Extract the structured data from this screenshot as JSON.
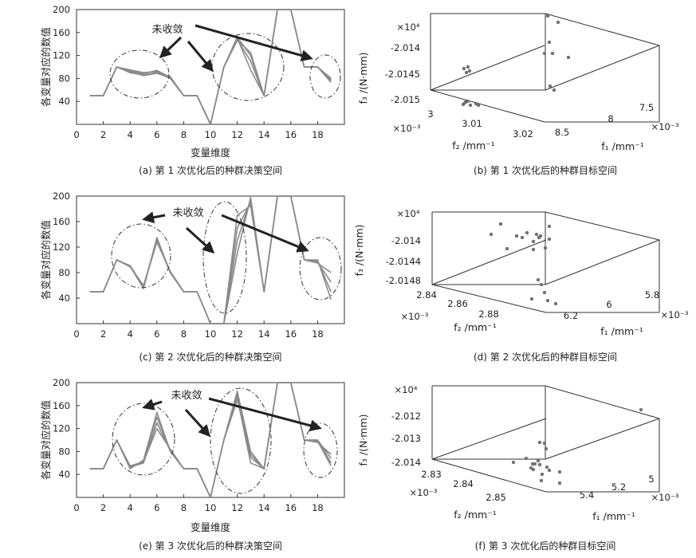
{
  "chart_data": [
    {
      "id": "a",
      "type": "line",
      "caption": "(a) 第 1 次优化后的种群决策空间",
      "ylabel": "各变量对应的数值",
      "xlabel": "变量维度",
      "xlim": [
        0,
        20
      ],
      "ylim": [
        0,
        200
      ],
      "xticks": [
        0,
        2,
        4,
        6,
        8,
        10,
        12,
        14,
        16,
        18
      ],
      "yticks": [
        40,
        80,
        120,
        160,
        200
      ],
      "annotation": "未收敛",
      "x": [
        1,
        2,
        3,
        4,
        5,
        6,
        7,
        8,
        9,
        10,
        11,
        12,
        13,
        14,
        15,
        16,
        17,
        18,
        19
      ],
      "series": [
        {
          "values": [
            50,
            50,
            100,
            90,
            86,
            90,
            80,
            50,
            50,
            0,
            100,
            150,
            95,
            50,
            200,
            200,
            100,
            100,
            80
          ]
        },
        {
          "values": [
            50,
            50,
            100,
            93,
            88,
            94,
            82,
            50,
            50,
            0,
            100,
            148,
            110,
            50,
            200,
            200,
            100,
            100,
            76
          ]
        },
        {
          "values": [
            50,
            50,
            100,
            95,
            90,
            92,
            83,
            50,
            50,
            0,
            100,
            152,
            120,
            50,
            200,
            200,
            100,
            100,
            73
          ]
        },
        {
          "values": [
            50,
            50,
            100,
            92,
            85,
            89,
            81,
            50,
            50,
            0,
            100,
            146,
            125,
            50,
            200,
            200,
            100,
            100,
            78
          ]
        }
      ]
    },
    {
      "id": "b",
      "type": "scatter",
      "caption": "(b) 第 1 次优化后的种群目标空间",
      "scale_note": "×10⁴",
      "zlabel": "f₃ /(N·mm)",
      "xlabel": "f₂ /mm⁻¹",
      "ylabel": "f₁ /mm⁻¹",
      "zticks": [
        "-2.014",
        "-2.0145",
        "-2.015"
      ],
      "f2_ticks": [
        "3",
        "3.01",
        "3.02"
      ],
      "f2_exp": "×10⁻³",
      "f1_ticks": [
        "8.5",
        "8",
        "7.5"
      ],
      "f1_exp": "×10⁻³"
    },
    {
      "id": "c",
      "type": "line",
      "caption": "(c) 第 2 次优化后的种群决策空间",
      "ylabel": "各变量对应的数值",
      "xlabel": "",
      "xlim": [
        0,
        20
      ],
      "ylim": [
        0,
        200
      ],
      "xticks": [
        0,
        2,
        4,
        6,
        8,
        10,
        12,
        14,
        16,
        18
      ],
      "yticks": [
        40,
        80,
        120,
        160,
        200
      ],
      "annotation": "未收敛",
      "x": [
        1,
        2,
        3,
        4,
        5,
        6,
        7,
        8,
        9,
        10,
        11,
        12,
        13,
        14,
        15,
        16,
        17,
        18,
        19
      ],
      "series": [
        {
          "values": [
            50,
            50,
            100,
            90,
            55,
            135,
            80,
            50,
            50,
            0,
            0,
            110,
            198,
            50,
            200,
            200,
            100,
            100,
            38
          ]
        },
        {
          "values": [
            50,
            50,
            100,
            91,
            58,
            132,
            81,
            50,
            50,
            0,
            0,
            130,
            195,
            50,
            200,
            200,
            100,
            98,
            50
          ]
        },
        {
          "values": [
            50,
            50,
            100,
            89,
            60,
            128,
            82,
            50,
            50,
            0,
            0,
            150,
            190,
            50,
            200,
            200,
            100,
            96,
            65
          ]
        },
        {
          "values": [
            50,
            50,
            100,
            90,
            57,
            130,
            80,
            50,
            50,
            0,
            0,
            170,
            185,
            50,
            200,
            200,
            100,
            95,
            80
          ]
        }
      ]
    },
    {
      "id": "d",
      "type": "scatter",
      "caption": "(d) 第 2 次优化后的种群目标空间",
      "scale_note": "×10⁴",
      "zlabel": "f₃ /(N·mm)",
      "xlabel": "f₂ /mm⁻¹",
      "ylabel": "f₁ /mm⁻¹",
      "zticks": [
        "-2.014",
        "-2.0144",
        "-2.0148"
      ],
      "f2_ticks": [
        "2.84",
        "2.86",
        "2.88"
      ],
      "f2_exp": "×10⁻³",
      "f1_ticks": [
        "6.2",
        "6",
        "5.8"
      ],
      "f1_exp": "×10⁻³"
    },
    {
      "id": "e",
      "type": "line",
      "caption": "(e) 第 3 次优化后的种群决策空间",
      "ylabel": "各变量对应的数值",
      "xlabel": "变量维度",
      "xlim": [
        0,
        20
      ],
      "ylim": [
        0,
        200
      ],
      "xticks": [
        0,
        2,
        4,
        6,
        8,
        10,
        12,
        14,
        16,
        18
      ],
      "yticks": [
        40,
        80,
        120,
        160,
        200
      ],
      "annotation": "未收敛",
      "x": [
        1,
        2,
        3,
        4,
        5,
        6,
        7,
        8,
        9,
        10,
        11,
        12,
        13,
        14,
        15,
        16,
        17,
        18,
        19
      ],
      "series": [
        {
          "values": [
            50,
            50,
            100,
            50,
            65,
            148,
            80,
            50,
            50,
            0,
            100,
            185,
            80,
            50,
            200,
            200,
            100,
            100,
            60
          ]
        },
        {
          "values": [
            50,
            50,
            100,
            52,
            63,
            140,
            82,
            50,
            50,
            0,
            100,
            180,
            70,
            50,
            200,
            200,
            100,
            100,
            68
          ]
        },
        {
          "values": [
            50,
            50,
            100,
            55,
            62,
            120,
            84,
            50,
            50,
            0,
            100,
            175,
            60,
            50,
            200,
            200,
            100,
            96,
            75
          ]
        },
        {
          "values": [
            50,
            50,
            100,
            53,
            60,
            130,
            81,
            50,
            50,
            0,
            100,
            170,
            75,
            50,
            200,
            200,
            100,
            98,
            55
          ]
        }
      ]
    },
    {
      "id": "f",
      "type": "scatter",
      "caption": "(f) 第 3 次优化后的种群目标空间",
      "scale_note": "×10⁴",
      "zlabel": "f₃ /(N·mm)",
      "xlabel": "f₂ /mm⁻¹",
      "ylabel": "f₁ /mm⁻¹",
      "zticks": [
        "-2.012",
        "-2.013",
        "-2.014"
      ],
      "f2_ticks": [
        "2.83",
        "2.84",
        "2.85"
      ],
      "f2_exp": "×10⁻³",
      "f1_ticks": [
        "5.4",
        "5.2",
        "5"
      ],
      "f1_exp": "×10⁻³"
    }
  ]
}
